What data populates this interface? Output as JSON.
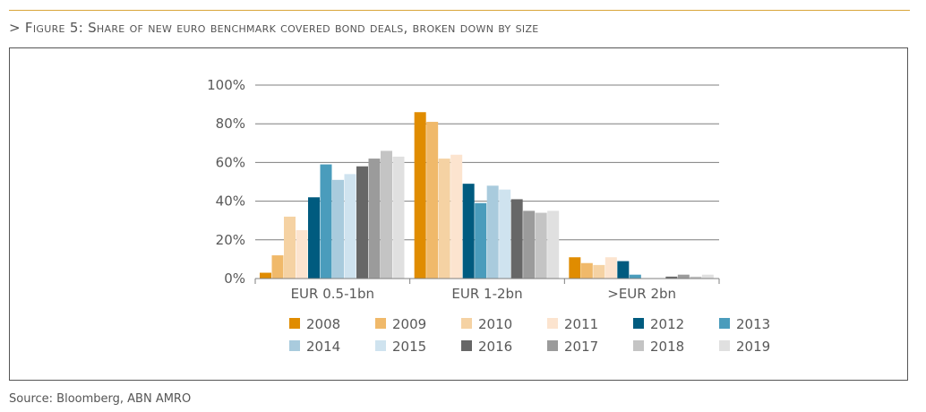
{
  "figure": {
    "title": "> Figure 5: Share of new euro benchmark covered bond deals, broken down by size",
    "source": "Source: Bloomberg, ABN AMRO"
  },
  "chart_data": {
    "type": "bar",
    "categories": [
      "EUR 0.5-1bn",
      "EUR 1-2bn",
      ">EUR 2bn"
    ],
    "ylim": [
      0,
      100
    ],
    "y_ticks": [
      "0%",
      "20%",
      "40%",
      "60%",
      "80%",
      "100%"
    ],
    "grid": true,
    "legend_placement": "bottom",
    "series": [
      {
        "name": "2008",
        "color": "#e08c00",
        "values": [
          3,
          86,
          11
        ]
      },
      {
        "name": "2009",
        "color": "#f0b96a",
        "values": [
          12,
          81,
          8
        ]
      },
      {
        "name": "2010",
        "color": "#f5d2a3",
        "values": [
          32,
          62,
          7
        ]
      },
      {
        "name": "2011",
        "color": "#fce4cf",
        "values": [
          25,
          64,
          11
        ]
      },
      {
        "name": "2012",
        "color": "#005b7f",
        "values": [
          42,
          49,
          9
        ]
      },
      {
        "name": "2013",
        "color": "#4a9cbc",
        "values": [
          59,
          39,
          2
        ]
      },
      {
        "name": "2014",
        "color": "#a9cbdd",
        "values": [
          51,
          48,
          0
        ]
      },
      {
        "name": "2015",
        "color": "#cfe3ef",
        "values": [
          54,
          46,
          0
        ]
      },
      {
        "name": "2016",
        "color": "#676767",
        "values": [
          58,
          41,
          1
        ]
      },
      {
        "name": "2017",
        "color": "#9b9b9b",
        "values": [
          62,
          35,
          2
        ]
      },
      {
        "name": "2018",
        "color": "#c4c4c4",
        "values": [
          66,
          34,
          1
        ]
      },
      {
        "name": "2019",
        "color": "#e0e0e0",
        "values": [
          63,
          35,
          2
        ]
      }
    ]
  }
}
